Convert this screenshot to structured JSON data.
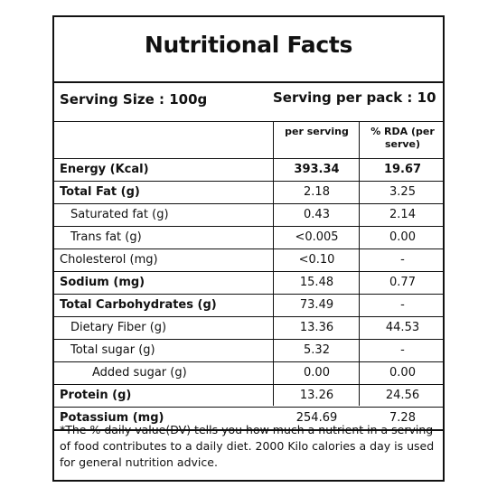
{
  "label": {
    "title": "Nutritional Facts",
    "serving_size": "Serving Size : 100g",
    "serving_per_pack": "Serving per pack : 10",
    "col_headers": {
      "per_serving": "per serving",
      "rda": "% RDA (per serve)"
    },
    "rows": [
      {
        "name": "Energy (Kcal)",
        "per": "393.34",
        "rda": "19.67"
      },
      {
        "name": "Total Fat (g)",
        "per": "2.18",
        "rda": "3.25"
      },
      {
        "name": "Saturated fat (g)",
        "per": "0.43",
        "rda": "2.14"
      },
      {
        "name": "Trans fat (g)",
        "per": "<0.005",
        "rda": "0.00"
      },
      {
        "name": "Cholesterol (mg)",
        "per": "<0.10",
        "rda": "-"
      },
      {
        "name": "Sodium (mg)",
        "per": "15.48",
        "rda": "0.77"
      },
      {
        "name": "Total Carbohydrates (g)",
        "per": "73.49",
        "rda": "-"
      },
      {
        "name": "Dietary Fiber (g)",
        "per": "13.36",
        "rda": "44.53"
      },
      {
        "name": "Total sugar (g)",
        "per": "5.32",
        "rda": "-"
      },
      {
        "name": "Added sugar (g)",
        "per": "0.00",
        "rda": "0.00"
      },
      {
        "name": "Protein (g)",
        "per": "13.26",
        "rda": "24.56"
      },
      {
        "name": "Potassium (mg)",
        "per": "254.69",
        "rda": "7.28"
      }
    ],
    "footnote": "*The % daily value(DV) tells you how much a nutrient in a serving of food contributes to a daily diet. 2000 Kilo calories a day is used for general nutrition advice."
  }
}
